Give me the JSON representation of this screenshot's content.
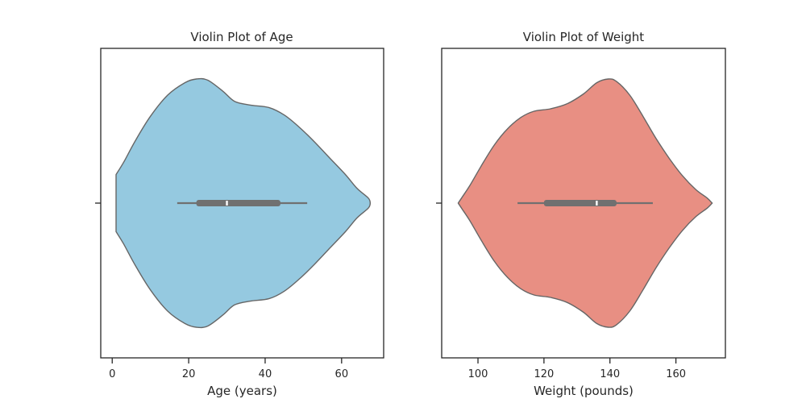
{
  "chart_data": [
    {
      "type": "violin",
      "title": "Violin Plot of Age",
      "xlabel": "Age (years)",
      "ylabel": "",
      "xlim": [
        -3,
        71
      ],
      "xticks": [
        0,
        20,
        40,
        60
      ],
      "fill_color": "#95c9e0",
      "edge_color": "#666666",
      "box_color": "#707070",
      "grid": false,
      "density_profile": [
        [
          1.0,
          0.23
        ],
        [
          3.0,
          0.33
        ],
        [
          6.0,
          0.5
        ],
        [
          10.0,
          0.7
        ],
        [
          14.5,
          0.87
        ],
        [
          19.0,
          0.97
        ],
        [
          22.0,
          1.0
        ],
        [
          25.0,
          0.99
        ],
        [
          29.0,
          0.9
        ],
        [
          32.0,
          0.82
        ],
        [
          36.0,
          0.79
        ],
        [
          41.0,
          0.77
        ],
        [
          45.0,
          0.71
        ],
        [
          49.0,
          0.61
        ],
        [
          53.0,
          0.49
        ],
        [
          57.0,
          0.36
        ],
        [
          61.0,
          0.23
        ],
        [
          64.0,
          0.12
        ],
        [
          67.0,
          0.04
        ],
        [
          67.5,
          0.0
        ]
      ],
      "whisker_low": 17,
      "q1": 22,
      "median": 30,
      "q3": 44,
      "whisker_high": 51
    },
    {
      "type": "violin",
      "title": "Violin Plot of Weight",
      "xlabel": "Weight (pounds)",
      "ylabel": "",
      "xlim": [
        89,
        175
      ],
      "xticks": [
        100,
        120,
        140,
        160
      ],
      "fill_color": "#e88f83",
      "edge_color": "#666666",
      "box_color": "#707070",
      "grid": false,
      "density_profile": [
        [
          94.0,
          0.0
        ],
        [
          95.0,
          0.04
        ],
        [
          97.5,
          0.14
        ],
        [
          101.0,
          0.3
        ],
        [
          105.0,
          0.47
        ],
        [
          109.0,
          0.6
        ],
        [
          113.0,
          0.69
        ],
        [
          117.0,
          0.74
        ],
        [
          122.0,
          0.76
        ],
        [
          127.0,
          0.8
        ],
        [
          132.0,
          0.88
        ],
        [
          136.0,
          0.97
        ],
        [
          139.5,
          1.0
        ],
        [
          142.0,
          0.98
        ],
        [
          146.0,
          0.87
        ],
        [
          150.0,
          0.7
        ],
        [
          154.0,
          0.52
        ],
        [
          158.0,
          0.36
        ],
        [
          162.0,
          0.22
        ],
        [
          166.0,
          0.11
        ],
        [
          169.5,
          0.04
        ],
        [
          171.0,
          0.0
        ]
      ],
      "whisker_low": 112,
      "q1": 120,
      "median": 136,
      "q3": 142,
      "whisker_high": 153
    }
  ]
}
